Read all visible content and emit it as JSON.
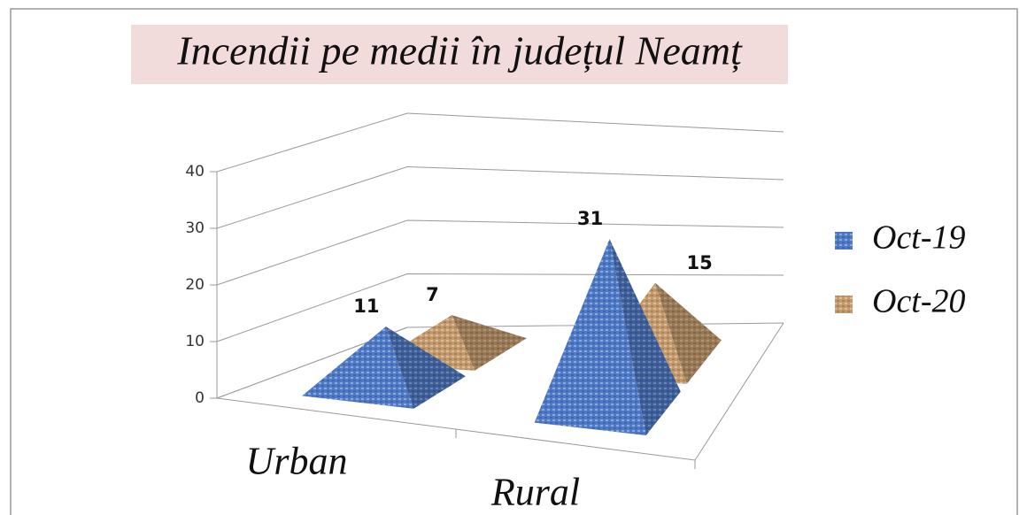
{
  "chart_data": {
    "type": "pyramid3d",
    "title": "Incendii pe medii în județul Neamț",
    "categories": [
      "Urban",
      "Rural"
    ],
    "series": [
      {
        "name": "Oct-19",
        "color": "#4f7ac7",
        "values": [
          11,
          31
        ]
      },
      {
        "name": "Oct-20",
        "color": "#c49a6c",
        "values": [
          7,
          15
        ]
      }
    ],
    "ylim": [
      0,
      40
    ],
    "yticks": [
      0,
      10,
      20,
      30,
      40
    ],
    "grid": true,
    "legend": "right"
  }
}
